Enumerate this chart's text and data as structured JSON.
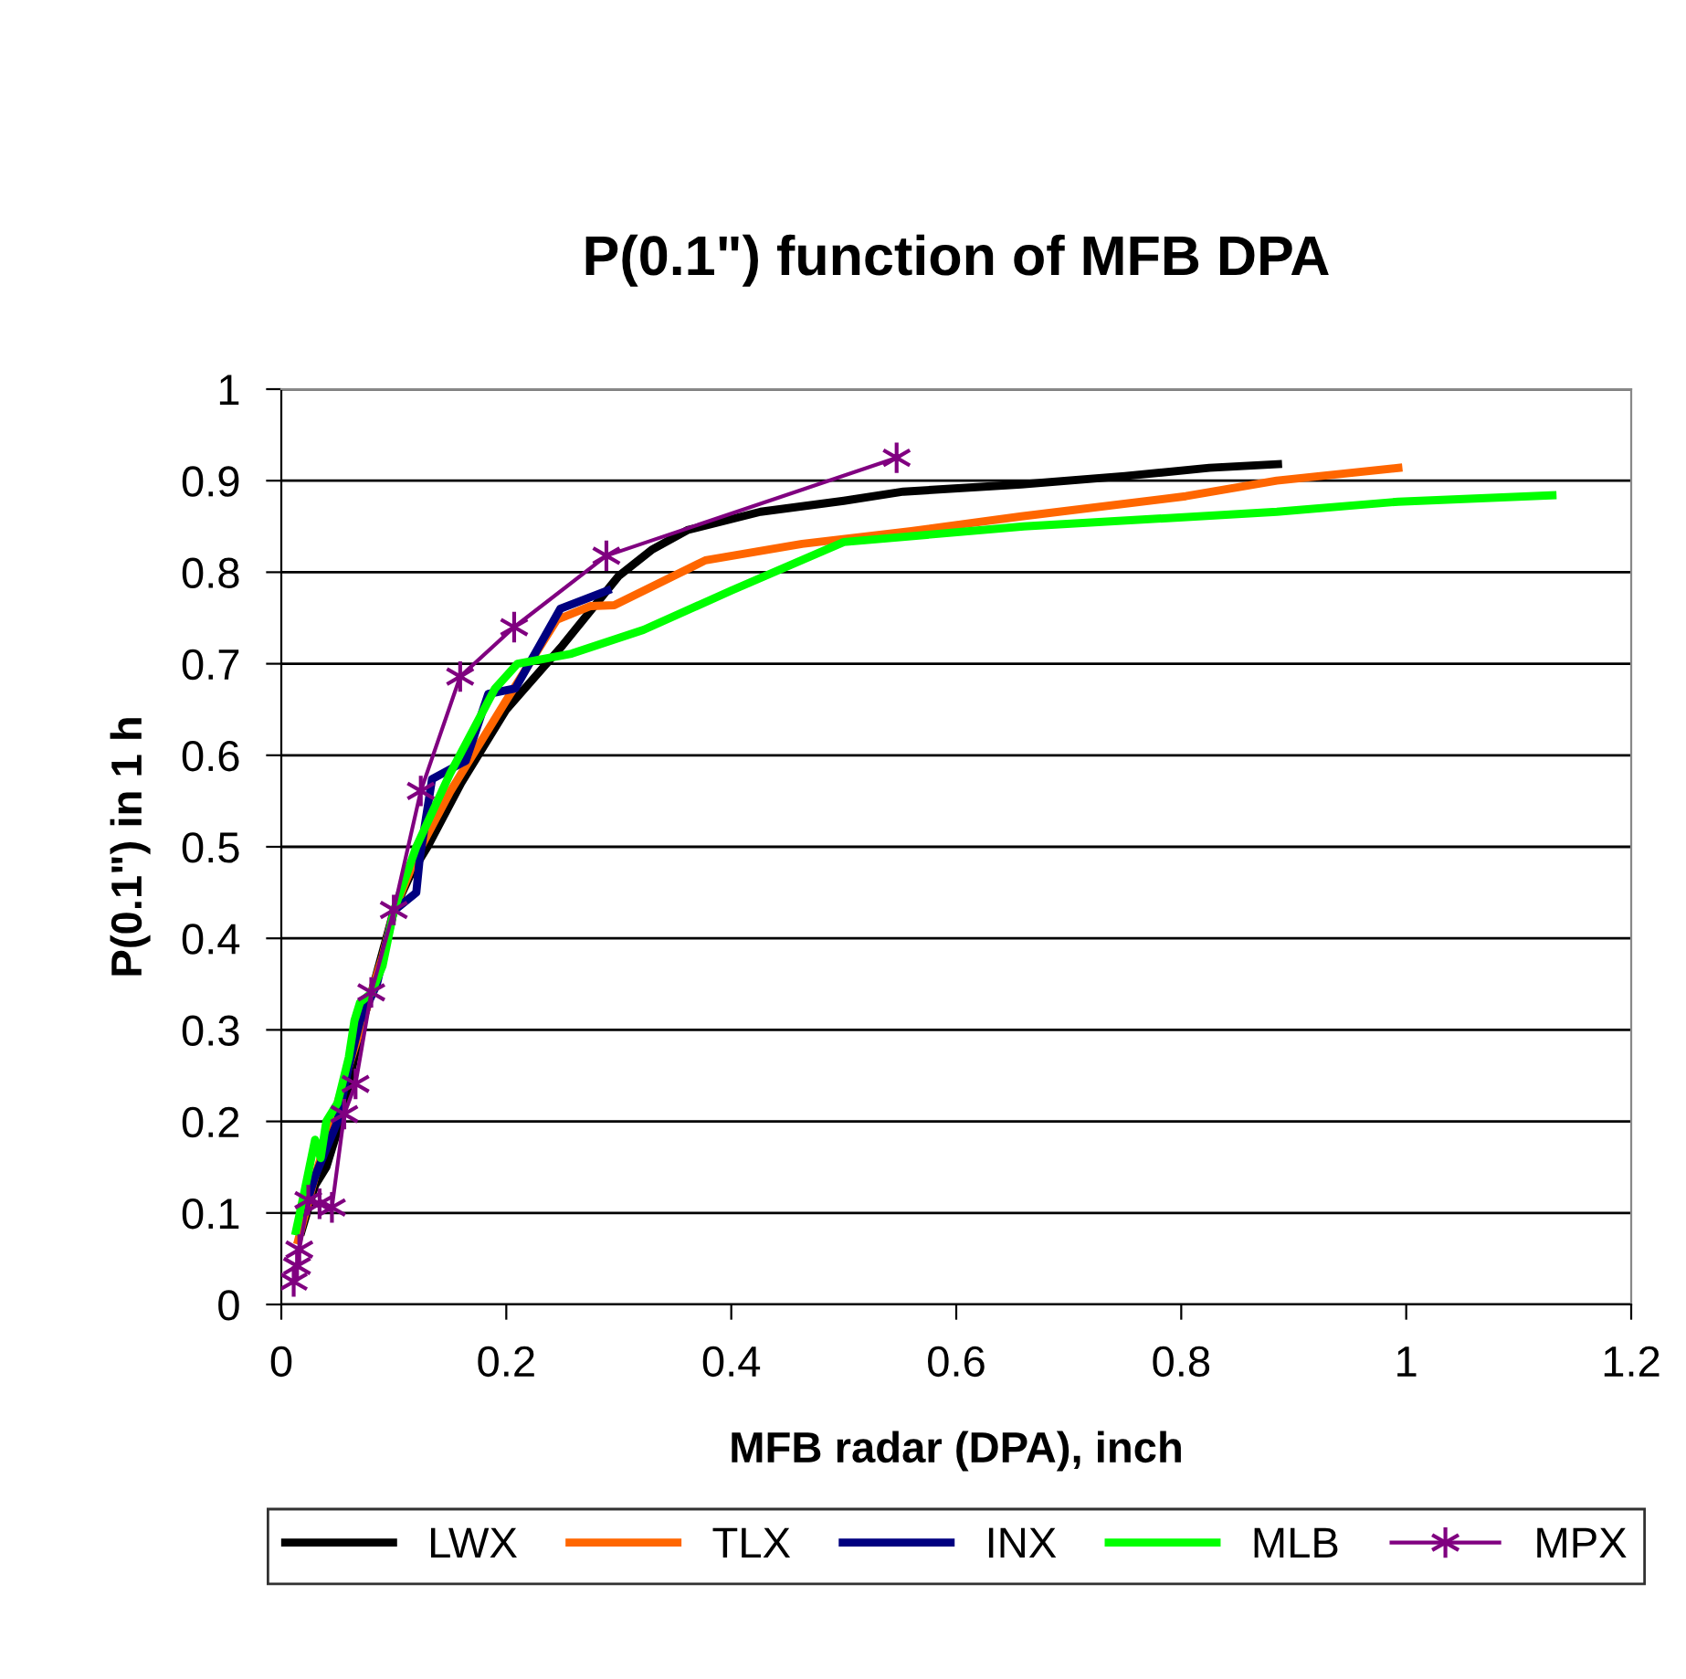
{
  "chart_data": {
    "type": "line",
    "title": "P(0.1\") function of MFB DPA",
    "xlabel": "MFB radar (DPA), inch",
    "ylabel": "P(0.1\") in 1 h",
    "xlim": [
      0,
      1.2
    ],
    "xticks": [
      0,
      0.2,
      0.4,
      0.6,
      0.8,
      1,
      1.2
    ],
    "ylim": [
      0,
      1
    ],
    "yticks": [
      0,
      0.1,
      0.2,
      0.3,
      0.4,
      0.5,
      0.6,
      0.7,
      0.8,
      0.9,
      1
    ],
    "grid": "y",
    "legend": "bottom",
    "series": [
      {
        "name": "LWX",
        "color": "#000000",
        "marker": "none",
        "x": [
          0.018,
          0.03,
          0.04,
          0.05,
          0.06,
          0.07,
          0.08,
          0.1,
          0.115,
          0.13,
          0.16,
          0.2,
          0.25,
          0.3,
          0.33,
          0.361,
          0.426,
          0.5,
          0.553,
          0.658,
          0.75,
          0.825,
          0.886
        ],
        "values": [
          0.08,
          0.13,
          0.15,
          0.19,
          0.24,
          0.3,
          0.34,
          0.43,
          0.47,
          0.5,
          0.57,
          0.65,
          0.72,
          0.796,
          0.825,
          0.846,
          0.866,
          0.878,
          0.888,
          0.896,
          0.905,
          0.914,
          0.918
        ]
      },
      {
        "name": "TLX",
        "color": "#ff6600",
        "marker": "none",
        "x": [
          0.015,
          0.03,
          0.05,
          0.07,
          0.09,
          0.1,
          0.12,
          0.15,
          0.2,
          0.245,
          0.275,
          0.296,
          0.377,
          0.463,
          0.56,
          0.658,
          0.804,
          0.885,
          0.993
        ],
        "values": [
          0.07,
          0.14,
          0.22,
          0.3,
          0.38,
          0.43,
          0.49,
          0.56,
          0.66,
          0.748,
          0.763,
          0.764,
          0.813,
          0.831,
          0.845,
          0.861,
          0.883,
          0.9,
          0.914
        ]
      },
      {
        "name": "INX",
        "color": "#000080",
        "marker": "none",
        "x": [
          0.02,
          0.03,
          0.04,
          0.05,
          0.06,
          0.07,
          0.085,
          0.1,
          0.12,
          0.123,
          0.134,
          0.164,
          0.184,
          0.208,
          0.248,
          0.29
        ],
        "values": [
          0.1,
          0.14,
          0.17,
          0.2,
          0.26,
          0.31,
          0.35,
          0.43,
          0.45,
          0.487,
          0.574,
          0.594,
          0.667,
          0.673,
          0.76,
          0.78
        ]
      },
      {
        "name": "MLB",
        "color": "#00ff00",
        "marker": "none",
        "x": [
          0.013,
          0.02,
          0.025,
          0.03,
          0.035,
          0.04,
          0.05,
          0.06,
          0.065,
          0.07,
          0.08,
          0.09,
          0.1,
          0.12,
          0.15,
          0.19,
          0.21,
          0.258,
          0.322,
          0.4,
          0.5,
          0.66,
          0.885,
          0.993,
          1.13
        ],
        "values": [
          0.08,
          0.12,
          0.15,
          0.18,
          0.16,
          0.2,
          0.22,
          0.27,
          0.31,
          0.33,
          0.34,
          0.37,
          0.43,
          0.5,
          0.58,
          0.673,
          0.7,
          0.711,
          0.737,
          0.78,
          0.833,
          0.85,
          0.866,
          0.877,
          0.884
        ]
      },
      {
        "name": "MPX",
        "color": "#800080",
        "marker": "cross",
        "x": [
          0.011,
          0.014,
          0.016,
          0.024,
          0.034,
          0.045,
          0.056,
          0.066,
          0.08,
          0.1,
          0.124,
          0.159,
          0.207,
          0.289,
          0.547
        ],
        "values": [
          0.025,
          0.042,
          0.06,
          0.114,
          0.11,
          0.106,
          0.208,
          0.241,
          0.341,
          0.431,
          0.561,
          0.686,
          0.74,
          0.818,
          0.925
        ]
      }
    ]
  }
}
